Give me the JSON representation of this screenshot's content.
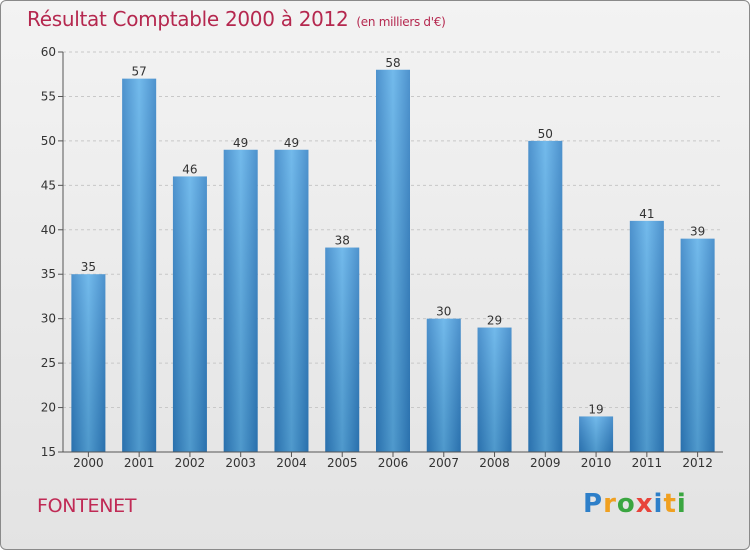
{
  "chart_data": {
    "type": "bar",
    "title": "Résultat Comptable 2000 à 2012",
    "subtitle": "(en milliers d'€)",
    "categories": [
      "2000",
      "2001",
      "2002",
      "2003",
      "2004",
      "2005",
      "2006",
      "2007",
      "2008",
      "2009",
      "2010",
      "2011",
      "2012"
    ],
    "values": [
      35,
      57,
      46,
      49,
      49,
      38,
      58,
      30,
      29,
      50,
      19,
      41,
      39
    ],
    "ylim": [
      15,
      60
    ],
    "yticks": [
      15,
      20,
      25,
      30,
      35,
      40,
      45,
      50,
      55,
      60
    ],
    "xlabel": "",
    "ylabel": "",
    "bar_color": "#3a8fd4"
  },
  "commune": "FONTENET",
  "logo": {
    "letters": [
      "P",
      "r",
      "o",
      "x",
      "i",
      "t",
      "i"
    ],
    "colors": [
      "#2d7fc9",
      "#f0a020",
      "#3aa640",
      "#e8433a",
      "#2d7fc9",
      "#f0a020",
      "#3aa640"
    ]
  }
}
